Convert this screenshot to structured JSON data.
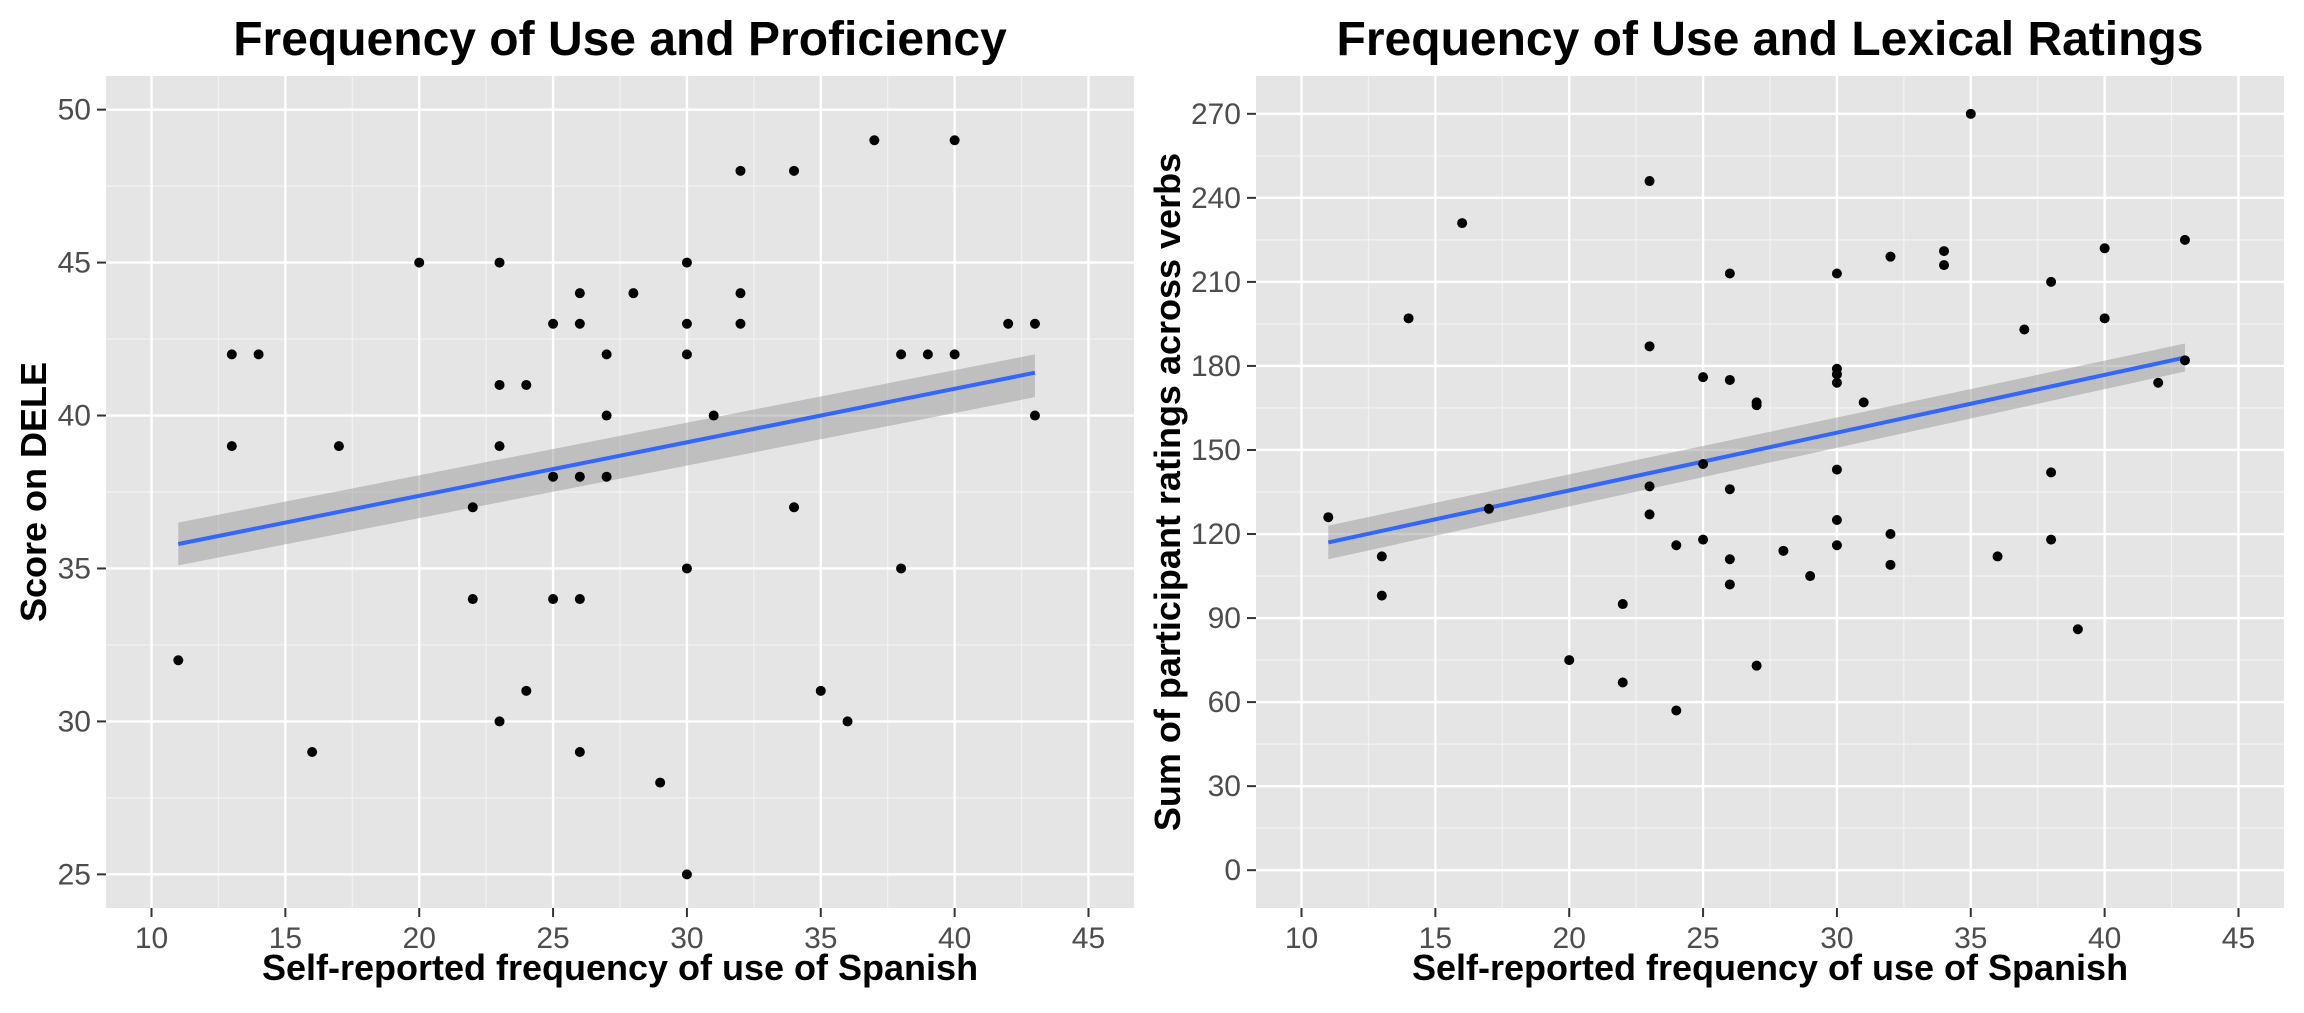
{
  "colors": {
    "panel_background": "#e5e5e5",
    "grid_major": "#ffffff",
    "grid_minor": "#f2f2f2",
    "points": "#000000",
    "fit_line": "#3366ff",
    "confidence_band": "#999999",
    "tick_text": "#4d4d4d"
  },
  "chart_data": [
    {
      "type": "scatter",
      "title": "Frequency of Use and Proficiency",
      "xlabel": "Self-reported frequency of use of Spanish",
      "ylabel": "Score on DELE",
      "xlim": [
        8.3,
        46.7
      ],
      "ylim": [
        23.9,
        51.1
      ],
      "xticks": [
        10,
        15,
        20,
        25,
        30,
        35,
        40,
        45
      ],
      "yticks": [
        25,
        30,
        35,
        40,
        45,
        50
      ],
      "grid": true,
      "legend": "none",
      "points": [
        {
          "x": 11,
          "y": 32
        },
        {
          "x": 13,
          "y": 42
        },
        {
          "x": 13,
          "y": 39
        },
        {
          "x": 14,
          "y": 42
        },
        {
          "x": 16,
          "y": 29
        },
        {
          "x": 17,
          "y": 39
        },
        {
          "x": 20,
          "y": 45
        },
        {
          "x": 22,
          "y": 37
        },
        {
          "x": 22,
          "y": 34
        },
        {
          "x": 23,
          "y": 45
        },
        {
          "x": 23,
          "y": 41
        },
        {
          "x": 23,
          "y": 39
        },
        {
          "x": 23,
          "y": 30
        },
        {
          "x": 24,
          "y": 41
        },
        {
          "x": 24,
          "y": 31
        },
        {
          "x": 25,
          "y": 43
        },
        {
          "x": 25,
          "y": 38
        },
        {
          "x": 25,
          "y": 34
        },
        {
          "x": 26,
          "y": 44
        },
        {
          "x": 26,
          "y": 43
        },
        {
          "x": 26,
          "y": 38
        },
        {
          "x": 26,
          "y": 34
        },
        {
          "x": 26,
          "y": 29
        },
        {
          "x": 27,
          "y": 42
        },
        {
          "x": 27,
          "y": 40
        },
        {
          "x": 27,
          "y": 38
        },
        {
          "x": 28,
          "y": 44
        },
        {
          "x": 29,
          "y": 28
        },
        {
          "x": 30,
          "y": 45
        },
        {
          "x": 30,
          "y": 43
        },
        {
          "x": 30,
          "y": 42
        },
        {
          "x": 30,
          "y": 35
        },
        {
          "x": 30,
          "y": 25
        },
        {
          "x": 31,
          "y": 40
        },
        {
          "x": 32,
          "y": 48
        },
        {
          "x": 32,
          "y": 44
        },
        {
          "x": 32,
          "y": 43
        },
        {
          "x": 34,
          "y": 48
        },
        {
          "x": 34,
          "y": 37
        },
        {
          "x": 35,
          "y": 31
        },
        {
          "x": 36,
          "y": 30
        },
        {
          "x": 37,
          "y": 49
        },
        {
          "x": 38,
          "y": 42
        },
        {
          "x": 38,
          "y": 35
        },
        {
          "x": 39,
          "y": 42
        },
        {
          "x": 40,
          "y": 49
        },
        {
          "x": 40,
          "y": 42
        },
        {
          "x": 42,
          "y": 43
        },
        {
          "x": 43,
          "y": 43
        },
        {
          "x": 43,
          "y": 40
        }
      ],
      "fit_line": {
        "x": [
          11,
          43
        ],
        "y": [
          35.8,
          41.4
        ]
      },
      "confidence_band": {
        "x": [
          11,
          43
        ],
        "lower": [
          35.1,
          40.6
        ],
        "upper": [
          36.5,
          42.0
        ]
      }
    },
    {
      "type": "scatter",
      "title": "Frequency of Use and Lexical Ratings",
      "xlabel": "Self-reported frequency of use of Spanish",
      "ylabel": "Sum of participant ratings across verbs",
      "xlim": [
        8.3,
        46.7
      ],
      "ylim": [
        -13.5,
        283.5
      ],
      "xticks": [
        10,
        15,
        20,
        25,
        30,
        35,
        40,
        45
      ],
      "yticks": [
        0,
        30,
        60,
        90,
        120,
        150,
        180,
        210,
        240,
        270
      ],
      "grid": true,
      "legend": "none",
      "points": [
        {
          "x": 11,
          "y": 126
        },
        {
          "x": 13,
          "y": 112
        },
        {
          "x": 13,
          "y": 98
        },
        {
          "x": 14,
          "y": 197
        },
        {
          "x": 16,
          "y": 231
        },
        {
          "x": 17,
          "y": 129
        },
        {
          "x": 20,
          "y": 75
        },
        {
          "x": 22,
          "y": 95
        },
        {
          "x": 22,
          "y": 67
        },
        {
          "x": 23,
          "y": 246
        },
        {
          "x": 23,
          "y": 187
        },
        {
          "x": 23,
          "y": 137
        },
        {
          "x": 23,
          "y": 127
        },
        {
          "x": 24,
          "y": 116
        },
        {
          "x": 24,
          "y": 57
        },
        {
          "x": 25,
          "y": 176
        },
        {
          "x": 25,
          "y": 145
        },
        {
          "x": 25,
          "y": 118
        },
        {
          "x": 26,
          "y": 213
        },
        {
          "x": 26,
          "y": 175
        },
        {
          "x": 26,
          "y": 136
        },
        {
          "x": 26,
          "y": 111
        },
        {
          "x": 26,
          "y": 102
        },
        {
          "x": 27,
          "y": 167
        },
        {
          "x": 27,
          "y": 166
        },
        {
          "x": 27,
          "y": 73
        },
        {
          "x": 28,
          "y": 114
        },
        {
          "x": 29,
          "y": 105
        },
        {
          "x": 30,
          "y": 213
        },
        {
          "x": 30,
          "y": 179
        },
        {
          "x": 30,
          "y": 177
        },
        {
          "x": 30,
          "y": 174
        },
        {
          "x": 30,
          "y": 143
        },
        {
          "x": 30,
          "y": 125
        },
        {
          "x": 30,
          "y": 116
        },
        {
          "x": 31,
          "y": 167
        },
        {
          "x": 32,
          "y": 219
        },
        {
          "x": 32,
          "y": 120
        },
        {
          "x": 32,
          "y": 109
        },
        {
          "x": 34,
          "y": 221
        },
        {
          "x": 34,
          "y": 216
        },
        {
          "x": 35,
          "y": 270
        },
        {
          "x": 36,
          "y": 112
        },
        {
          "x": 37,
          "y": 193
        },
        {
          "x": 38,
          "y": 210
        },
        {
          "x": 38,
          "y": 142
        },
        {
          "x": 38,
          "y": 118
        },
        {
          "x": 39,
          "y": 86
        },
        {
          "x": 40,
          "y": 222
        },
        {
          "x": 40,
          "y": 197
        },
        {
          "x": 42,
          "y": 174
        },
        {
          "x": 43,
          "y": 225
        },
        {
          "x": 43,
          "y": 182
        }
      ],
      "fit_line": {
        "x": [
          11,
          43
        ],
        "y": [
          117,
          183
        ]
      },
      "confidence_band": {
        "x": [
          11,
          43
        ],
        "lower": [
          111,
          178
        ],
        "upper": [
          123,
          188
        ]
      }
    }
  ]
}
